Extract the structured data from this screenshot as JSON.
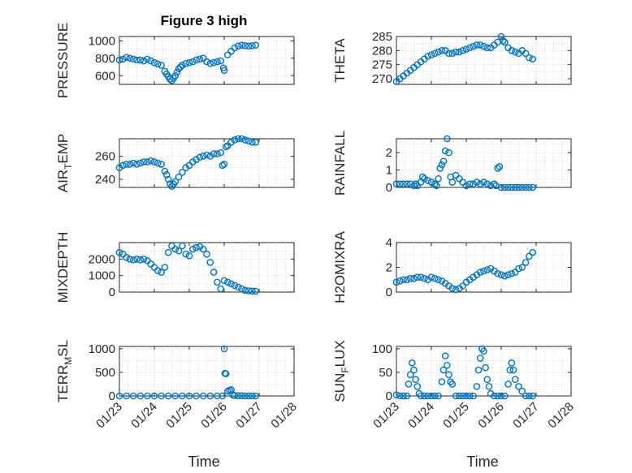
{
  "chart_data": [
    {
      "type": "scatter",
      "title": "Figure 3 high",
      "ylabel": "PRESSURE",
      "ylabel_sub": null,
      "ylim": [
        500,
        1050
      ],
      "yticks": [
        600,
        800,
        1000
      ],
      "x": [
        0,
        0.1,
        0.2,
        0.3,
        0.4,
        0.5,
        0.6,
        0.7,
        0.8,
        0.9,
        1,
        1.1,
        1.2,
        1.3,
        1.35,
        1.4,
        1.45,
        1.5,
        1.55,
        1.6,
        1.65,
        1.7,
        1.75,
        1.8,
        1.9,
        2,
        2.1,
        2.2,
        2.3,
        2.4,
        2.5,
        2.6,
        2.7,
        2.8,
        2.9,
        2.98,
        3,
        3.1,
        3.2,
        3.3,
        3.4,
        3.5,
        3.6,
        3.7,
        3.8,
        3.9
      ],
      "y": [
        780,
        790,
        810,
        800,
        790,
        780,
        780,
        770,
        790,
        770,
        750,
        735,
        720,
        650,
        620,
        590,
        560,
        545,
        570,
        600,
        640,
        680,
        700,
        720,
        740,
        750,
        760,
        780,
        790,
        800,
        760,
        740,
        750,
        760,
        770,
        690,
        660,
        840,
        880,
        920,
        940,
        950,
        945,
        940,
        945,
        950
      ]
    },
    {
      "type": "scatter",
      "title": "",
      "ylabel": "THETA",
      "ylabel_sub": null,
      "ylim": [
        268,
        285
      ],
      "yticks": [
        270,
        275,
        280,
        285
      ],
      "x": [
        0,
        0.1,
        0.2,
        0.3,
        0.4,
        0.5,
        0.6,
        0.7,
        0.8,
        0.9,
        1,
        1.1,
        1.2,
        1.3,
        1.4,
        1.5,
        1.6,
        1.7,
        1.8,
        1.9,
        2,
        2.1,
        2.2,
        2.3,
        2.4,
        2.5,
        2.6,
        2.7,
        2.8,
        2.9,
        3,
        3.05,
        3.1,
        3.2,
        3.3,
        3.4,
        3.5,
        3.6,
        3.7,
        3.8,
        3.9
      ],
      "y": [
        269,
        270,
        271,
        272,
        273,
        274,
        275,
        276,
        277,
        278,
        278.5,
        279,
        279.5,
        280,
        280,
        279,
        279,
        279.5,
        279.5,
        280,
        280.5,
        281,
        281.5,
        282,
        282,
        281.5,
        281,
        281,
        282,
        283,
        285,
        283.5,
        283,
        281,
        280,
        279.5,
        279,
        280,
        279,
        277.5,
        277
      ]
    },
    {
      "type": "scatter",
      "title": "",
      "ylabel": "AIR",
      "ylabel_sub": "T",
      "ylabel_after": "EMP",
      "ylim": [
        233,
        275
      ],
      "yticks": [
        240,
        260
      ],
      "x": [
        0,
        0.1,
        0.2,
        0.3,
        0.4,
        0.5,
        0.6,
        0.7,
        0.8,
        0.9,
        1,
        1.1,
        1.2,
        1.3,
        1.35,
        1.4,
        1.45,
        1.5,
        1.55,
        1.6,
        1.7,
        1.8,
        1.9,
        2,
        2.1,
        2.2,
        2.3,
        2.4,
        2.5,
        2.6,
        2.7,
        2.8,
        2.9,
        2.95,
        3,
        3.05,
        3.1,
        3.2,
        3.3,
        3.4,
        3.5,
        3.6,
        3.7,
        3.8,
        3.9
      ],
      "y": [
        250,
        252,
        253,
        253,
        254,
        253,
        254,
        255,
        255,
        256,
        255,
        254,
        253,
        247,
        244,
        240,
        236,
        234,
        236,
        238,
        242,
        246,
        250,
        252,
        255,
        257,
        259,
        260,
        261,
        260,
        262,
        262,
        263,
        252,
        253,
        268,
        269,
        272,
        274,
        275,
        275,
        274,
        273,
        272,
        272
      ]
    },
    {
      "type": "scatter",
      "title": "",
      "ylabel": "RAINFALL",
      "ylabel_sub": null,
      "ylim": [
        0,
        2.8
      ],
      "yticks": [
        0,
        1,
        2
      ],
      "x": [
        0,
        0.1,
        0.2,
        0.3,
        0.4,
        0.5,
        0.55,
        0.6,
        0.7,
        0.75,
        0.8,
        0.9,
        1,
        1.1,
        1.15,
        1.2,
        1.25,
        1.3,
        1.35,
        1.4,
        1.45,
        1.5,
        1.55,
        1.6,
        1.7,
        1.8,
        1.9,
        2,
        2.1,
        2.2,
        2.3,
        2.4,
        2.5,
        2.6,
        2.7,
        2.8,
        2.85,
        2.9,
        2.95,
        3,
        3.1,
        3.2,
        3.3,
        3.4,
        3.5,
        3.6,
        3.7,
        3.8,
        3.9
      ],
      "y": [
        0.2,
        0.2,
        0.2,
        0.2,
        0.2,
        0.1,
        0.2,
        0.1,
        0.3,
        0.6,
        0.5,
        0.4,
        0.3,
        0.2,
        0.1,
        0.5,
        1.1,
        1.3,
        1.5,
        2.1,
        2.8,
        2.0,
        0.6,
        0.3,
        0.7,
        0.5,
        0.3,
        0.1,
        0.2,
        0.2,
        0.3,
        0.2,
        0.3,
        0.2,
        0.1,
        0.2,
        0.1,
        1.1,
        1.2,
        0,
        0,
        0,
        0,
        0,
        0,
        0,
        0,
        0,
        0
      ]
    },
    {
      "type": "scatter",
      "title": "",
      "ylabel": "MIXDEPTH",
      "ylabel_sub": null,
      "ylim": [
        0,
        3000
      ],
      "yticks": [
        0,
        1000,
        2000
      ],
      "x": [
        0,
        0.1,
        0.2,
        0.3,
        0.4,
        0.5,
        0.6,
        0.7,
        0.8,
        0.9,
        1,
        1.1,
        1.2,
        1.3,
        1.4,
        1.5,
        1.6,
        1.7,
        1.8,
        1.9,
        2,
        2.1,
        2.2,
        2.3,
        2.4,
        2.5,
        2.6,
        2.7,
        2.8,
        2.9,
        3,
        3.1,
        3.2,
        3.3,
        3.4,
        3.5,
        3.6,
        3.7,
        3.8,
        3.9
      ],
      "y": [
        2400,
        2300,
        2100,
        2000,
        1950,
        2000,
        1950,
        2000,
        1900,
        1700,
        1500,
        1300,
        1200,
        1500,
        2400,
        2800,
        2600,
        2500,
        2800,
        2300,
        2200,
        2600,
        2700,
        2750,
        2600,
        2300,
        1800,
        1200,
        600,
        200,
        700,
        600,
        500,
        400,
        300,
        200,
        100,
        80,
        60,
        50
      ]
    },
    {
      "type": "scatter",
      "title": "",
      "ylabel": "H2OMIXRA",
      "ylabel_sub": null,
      "ylim": [
        0,
        4
      ],
      "yticks": [
        0,
        2,
        4
      ],
      "x": [
        0,
        0.1,
        0.2,
        0.3,
        0.4,
        0.5,
        0.6,
        0.7,
        0.8,
        0.9,
        1,
        1.1,
        1.2,
        1.3,
        1.4,
        1.5,
        1.6,
        1.7,
        1.8,
        1.9,
        2,
        2.1,
        2.2,
        2.3,
        2.4,
        2.5,
        2.6,
        2.7,
        2.8,
        2.9,
        3,
        3.1,
        3.2,
        3.3,
        3.4,
        3.5,
        3.6,
        3.7,
        3.8,
        3.9
      ],
      "y": [
        0.8,
        0.9,
        1.0,
        1.0,
        1.1,
        1.1,
        1.2,
        1.2,
        1.1,
        1.0,
        1.2,
        1.1,
        1.0,
        0.9,
        0.7,
        0.5,
        0.3,
        0.2,
        0.3,
        0.5,
        0.8,
        1.0,
        1.2,
        1.4,
        1.6,
        1.7,
        1.8,
        1.9,
        1.7,
        1.5,
        1.4,
        1.3,
        1.4,
        1.5,
        1.6,
        1.9,
        2.0,
        2.4,
        2.9,
        3.2
      ]
    },
    {
      "type": "scatter",
      "title": "",
      "ylabel": "TERR",
      "ylabel_sub": "M",
      "ylabel_after": "SL",
      "ylim": [
        0,
        1050
      ],
      "yticks": [
        0,
        500,
        1000
      ],
      "xticklabels": [
        "01/23",
        "01/24",
        "01/25",
        "01/26",
        "01/27",
        "01/28"
      ],
      "xlabel": "Time",
      "x": [
        0,
        0.2,
        0.4,
        0.6,
        0.8,
        1,
        1.2,
        1.4,
        1.6,
        1.8,
        2,
        2.2,
        2.4,
        2.6,
        2.8,
        2.95,
        3,
        3.02,
        3.05,
        3.1,
        3.15,
        3.2,
        3.25,
        3.3,
        3.4,
        3.5,
        3.6,
        3.7,
        3.8,
        3.9
      ],
      "y": [
        0,
        0,
        0,
        0,
        0,
        0,
        0,
        0,
        0,
        0,
        0,
        0,
        0,
        0,
        0,
        0,
        1000,
        480,
        470,
        100,
        120,
        130,
        20,
        10,
        5,
        5,
        0,
        0,
        0,
        0
      ]
    },
    {
      "type": "scatter",
      "title": "",
      "ylabel": "SUN",
      "ylabel_sub": "F",
      "ylabel_after": "LUX",
      "ylim": [
        0,
        105
      ],
      "yticks": [
        0,
        50,
        100
      ],
      "xticklabels": [
        "01/23",
        "01/24",
        "01/25",
        "01/26",
        "01/27",
        "01/28"
      ],
      "xlabel": "Time",
      "x": [
        0,
        0.1,
        0.2,
        0.3,
        0.35,
        0.4,
        0.45,
        0.5,
        0.55,
        0.6,
        0.65,
        0.7,
        0.8,
        0.9,
        1,
        1.1,
        1.2,
        1.3,
        1.35,
        1.4,
        1.45,
        1.5,
        1.55,
        1.6,
        1.7,
        1.8,
        1.9,
        2,
        2.1,
        2.2,
        2.3,
        2.35,
        2.4,
        2.45,
        2.5,
        2.55,
        2.6,
        2.65,
        2.7,
        2.8,
        2.9,
        3,
        3.1,
        3.2,
        3.25,
        3.3,
        3.35,
        3.4,
        3.5,
        3.6,
        3.7,
        3.8,
        3.9
      ],
      "y": [
        2,
        0,
        0,
        0,
        25,
        45,
        70,
        55,
        35,
        20,
        5,
        0,
        0,
        0,
        0,
        0,
        0,
        30,
        55,
        85,
        65,
        45,
        30,
        25,
        0,
        0,
        0,
        0,
        0,
        0,
        20,
        55,
        80,
        100,
        95,
        60,
        35,
        20,
        5,
        0,
        0,
        0,
        0,
        25,
        55,
        70,
        55,
        35,
        20,
        10,
        0,
        0,
        0
      ]
    }
  ]
}
